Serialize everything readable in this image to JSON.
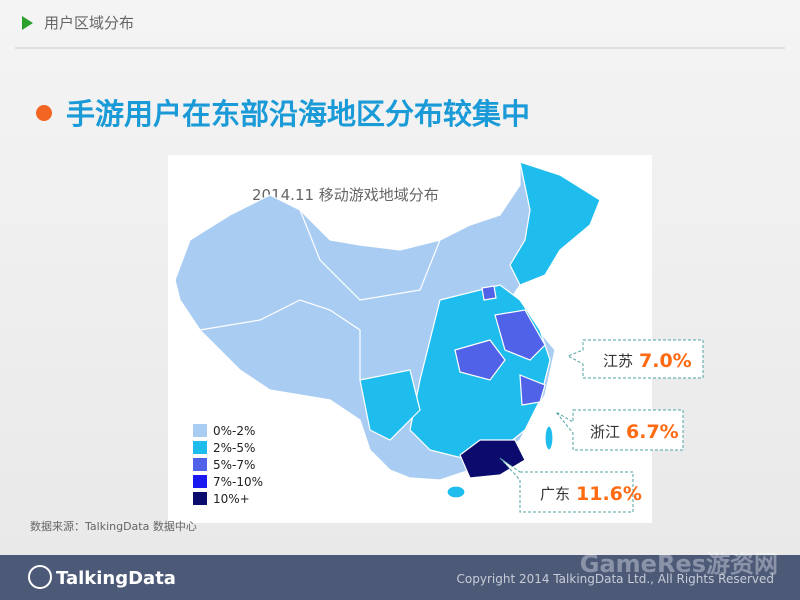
{
  "header": {
    "section": "用户区域分布",
    "title": "手游用户在东部沿海地区分布较集中"
  },
  "map": {
    "title": "2014.11 移动游戏地域分布",
    "legend": [
      {
        "label": "0%-2%",
        "color": "#a9cdf2"
      },
      {
        "label": "2%-5%",
        "color": "#1fbcee"
      },
      {
        "label": "5%-7%",
        "color": "#4f62e8"
      },
      {
        "label": "7%-10%",
        "color": "#1a1af0"
      },
      {
        "label": "10%+",
        "color": "#0b0b6e"
      }
    ],
    "callouts": [
      {
        "region": "江苏",
        "value": "7.0%"
      },
      {
        "region": "浙江",
        "value": "6.7%"
      },
      {
        "region": "广东",
        "value": "11.6%"
      }
    ]
  },
  "source": "数据来源：TalkingData 数据中心",
  "footer": {
    "brand": "TalkingData",
    "copyright": "Copyright 2014 TalkingData Ltd., All Rights Reserved",
    "watermark": "GameRes游资网"
  }
}
